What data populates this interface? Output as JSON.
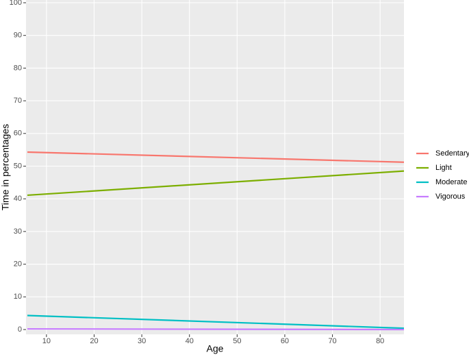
{
  "chart_data": {
    "type": "line",
    "x_label": "Age",
    "y_label": "Time in percentages",
    "x": [
      6,
      85
    ],
    "series": [
      {
        "name": "Sedentary",
        "color": "#F8766D",
        "values": [
          54.3,
          51.2
        ]
      },
      {
        "name": "Light",
        "color": "#7CAE00",
        "values": [
          41.1,
          48.5
        ]
      },
      {
        "name": "Moderate",
        "color": "#00BFC4",
        "values": [
          4.3,
          0.4
        ]
      },
      {
        "name": "Vigorous",
        "color": "#C77CFF",
        "values": [
          0.2,
          0
        ]
      }
    ],
    "xlim": [
      6,
      85
    ],
    "xticks": [
      10,
      20,
      30,
      40,
      50,
      60,
      70,
      80
    ],
    "ylim": [
      0,
      100
    ],
    "yticks": [
      0,
      10,
      20,
      30,
      40,
      50,
      60,
      70,
      80,
      90,
      100
    ],
    "grid": true,
    "legend": "right"
  }
}
